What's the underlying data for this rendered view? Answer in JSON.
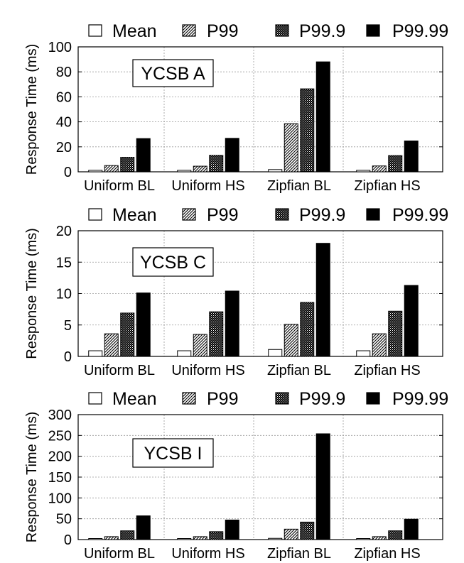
{
  "chart_data": [
    {
      "type": "bar",
      "title": "YCSB A",
      "ylabel": "Response Time (ms)",
      "ylim": [
        0,
        100
      ],
      "yticks": [
        0,
        20,
        40,
        60,
        80,
        100
      ],
      "grid": true,
      "legend_position": "top",
      "categories": [
        "Uniform BL",
        "Uniform HS",
        "Zipfian BL",
        "Zipfian HS"
      ],
      "series": [
        {
          "name": "Mean",
          "values": [
            1.2,
            1.2,
            1.8,
            1.2
          ]
        },
        {
          "name": "P99",
          "values": [
            5.0,
            4.5,
            38.5,
            4.7
          ]
        },
        {
          "name": "P99.9",
          "values": [
            11.6,
            13.2,
            66.4,
            13.0
          ]
        },
        {
          "name": "P99.99",
          "values": [
            26.6,
            26.8,
            88.0,
            24.7
          ]
        }
      ]
    },
    {
      "type": "bar",
      "title": "YCSB C",
      "ylabel": "Response Time (ms)",
      "ylim": [
        0,
        20
      ],
      "yticks": [
        0,
        5,
        10,
        15,
        20
      ],
      "grid": true,
      "legend_position": "top",
      "categories": [
        "Uniform BL",
        "Uniform HS",
        "Zipfian BL",
        "Zipfian HS"
      ],
      "series": [
        {
          "name": "Mean",
          "values": [
            0.9,
            0.9,
            1.1,
            0.9
          ]
        },
        {
          "name": "P99",
          "values": [
            3.6,
            3.5,
            5.1,
            3.6
          ]
        },
        {
          "name": "P99.9",
          "values": [
            6.9,
            7.1,
            8.6,
            7.2
          ]
        },
        {
          "name": "P99.99",
          "values": [
            10.1,
            10.4,
            18.0,
            11.3
          ]
        }
      ]
    },
    {
      "type": "bar",
      "title": "YCSB I",
      "ylabel": "Response Time (ms)",
      "ylim": [
        0,
        300
      ],
      "yticks": [
        0,
        50,
        100,
        150,
        200,
        250,
        300
      ],
      "grid": true,
      "legend_position": "top",
      "categories": [
        "Uniform BL",
        "Uniform HS",
        "Zipfian BL",
        "Zipfian HS"
      ],
      "series": [
        {
          "name": "Mean",
          "values": [
            2.5,
            2.5,
            3.0,
            2.5
          ]
        },
        {
          "name": "P99",
          "values": [
            7,
            7,
            25,
            7
          ]
        },
        {
          "name": "P99.9",
          "values": [
            21,
            19,
            42,
            21
          ]
        },
        {
          "name": "P99.99",
          "values": [
            57,
            47,
            254,
            49
          ]
        }
      ]
    }
  ],
  "legend": [
    {
      "name": "Mean",
      "pattern": "empty"
    },
    {
      "name": "P99",
      "pattern": "diagonal-hatch"
    },
    {
      "name": "P99.9",
      "pattern": "checker"
    },
    {
      "name": "P99.99",
      "pattern": "solid"
    }
  ],
  "colors": {
    "bar_outline": "#000000",
    "solid_fill": "#000000",
    "background": "#ffffff",
    "grid": "#999999"
  }
}
